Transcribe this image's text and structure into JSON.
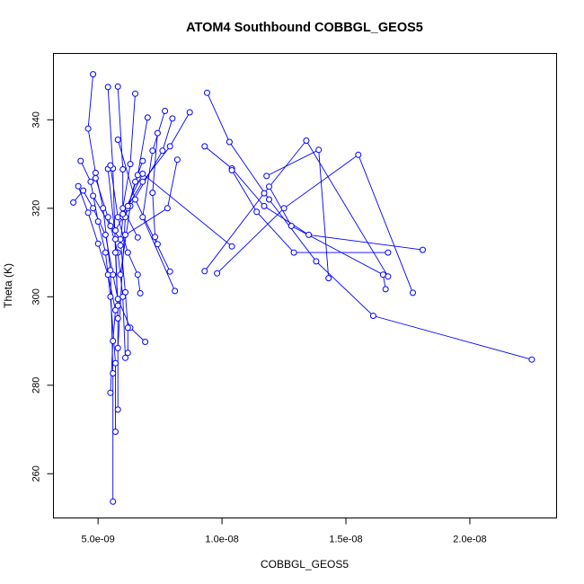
{
  "chart_data": {
    "type": "line",
    "title": "ATOM4 Southbound COBBGL_GEOS5",
    "xlabel": "COBBGL_GEOS5",
    "ylabel": "Theta (K)",
    "xlim": [
      3.2e-09,
      2.35e-08
    ],
    "ylim": [
      250,
      355
    ],
    "xticks": [
      {
        "value": 5e-09,
        "label": "5.0e-09"
      },
      {
        "value": 1e-08,
        "label": "1.0e-08"
      },
      {
        "value": 1.5e-08,
        "label": "1.5e-08"
      },
      {
        "value": 2e-08,
        "label": "2.0e-08"
      }
    ],
    "yticks": [
      {
        "value": 260,
        "label": "260"
      },
      {
        "value": 280,
        "label": "280"
      },
      {
        "value": 300,
        "label": "300"
      },
      {
        "value": 320,
        "label": "320"
      },
      {
        "value": 340,
        "label": "340"
      }
    ],
    "grid": false,
    "line_color": "#0000ff",
    "series": [
      {
        "x": [
          4e-09,
          4.4e-09,
          4.8e-09,
          5.3e-09,
          5.6e-09,
          5.8e-09,
          6.3e-09,
          6.9e-09
        ],
        "y": [
          321.3,
          324.0,
          320.0,
          314.0,
          305.0,
          299.5,
          293.0,
          289.8
        ]
      },
      {
        "x": [
          4.2e-09,
          4.6e-09,
          5e-09,
          5.4e-09,
          5.7e-09,
          5.6e-09,
          5.5e-09
        ],
        "y": [
          325.0,
          319.0,
          312.0,
          305.0,
          297.0,
          290.0,
          278.3
        ]
      },
      {
        "x": [
          4.3e-09,
          4.7e-09,
          5e-09,
          5.3e-09,
          5.5e-09,
          5.7e-09,
          5.7e-09
        ],
        "y": [
          330.7,
          326.0,
          317.0,
          310.0,
          300.0,
          285.0,
          269.5
        ]
      },
      {
        "x": [
          4.8e-09,
          4.6e-09,
          4.9e-09,
          5.2e-09,
          5.5e-09,
          5.6e-09,
          5.6e-09
        ],
        "y": [
          350.3,
          338.0,
          328.0,
          320.0,
          306.0,
          282.7,
          253.7
        ]
      },
      {
        "x": [
          4.8e-09,
          5.5e-09,
          5.9e-09,
          6.1e-09,
          6.2e-09,
          6.2e-09
        ],
        "y": [
          322.8,
          316.0,
          313.0,
          301.0,
          293.0,
          287.3
        ]
      },
      {
        "x": [
          4.9e-09,
          5.4e-09,
          5.8e-09,
          6e-09,
          6.1e-09
        ],
        "y": [
          326.8,
          318.0,
          310.0,
          300.0,
          286.2
        ]
      },
      {
        "x": [
          5.4e-09,
          5.6e-09,
          5.7e-09,
          5.8e-09,
          5.8e-09
        ],
        "y": [
          347.4,
          329.0,
          310.0,
          298.0,
          274.5
        ]
      },
      {
        "x": [
          5.4e-09,
          5.7e-09,
          5.8e-09
        ],
        "y": [
          328.9,
          313.0,
          295.1
        ]
      },
      {
        "x": [
          5.5e-09,
          5.8e-09,
          6.2e-09,
          6.6e-09,
          6.7e-09
        ],
        "y": [
          329.7,
          318.0,
          310.0,
          305.0,
          300.8
        ]
      },
      {
        "x": [
          5.8e-09,
          6e-09,
          6e-09,
          5.9e-09
        ],
        "y": [
          347.5,
          328.8,
          318.0,
          311.6
        ]
      },
      {
        "x": [
          5.8e-09,
          6.5e-09,
          7.9e-09
        ],
        "y": [
          335.5,
          322.0,
          305.7
        ]
      },
      {
        "x": [
          6.5e-09,
          6.3e-09,
          6e-09,
          6.6e-09
        ],
        "y": [
          345.9,
          330.0,
          320.0,
          313.4
        ]
      },
      {
        "x": [
          6.8e-09,
          6.5e-09,
          6.1e-09,
          5.8e-09
        ],
        "y": [
          330.7,
          326.0,
          318.0,
          288.4
        ]
      },
      {
        "x": [
          7e-09,
          6.6e-09,
          6.2e-09,
          5.7e-09
        ],
        "y": [
          340.5,
          327.5,
          320.0,
          315.0
        ]
      },
      {
        "x": [
          7.4e-09,
          7.2e-09,
          7.3e-09,
          7.4e-09
        ],
        "y": [
          337.0,
          323.5,
          313.5,
          311.9
        ]
      },
      {
        "x": [
          7.7e-09,
          7.2e-09,
          6.8e-09,
          8.1e-09
        ],
        "y": [
          342.0,
          333.0,
          318.0,
          301.3
        ]
      },
      {
        "x": [
          8e-09,
          7.6e-09,
          6.3e-09,
          5.9e-09
        ],
        "y": [
          340.3,
          333.0,
          320.5,
          305.0
        ]
      },
      {
        "x": [
          8.2e-09,
          7.8e-09,
          6.1e-09
        ],
        "y": [
          331.0,
          320.0,
          314.0
        ]
      },
      {
        "x": [
          8.7e-09,
          7.9e-09,
          6.8e-09,
          6.2e-09
        ],
        "y": [
          341.7,
          334.0,
          326.0,
          320.5
        ]
      },
      {
        "x": [
          9.4e-09,
          1.03e-08,
          1.19e-08,
          1.38e-08,
          1.61e-08,
          2.25e-08
        ],
        "y": [
          346.1,
          335.0,
          322.0,
          308.0,
          295.7,
          285.8
        ]
      },
      {
        "x": [
          9.3e-09,
          1.04e-08,
          1.17e-08,
          1.35e-08,
          1.81e-08
        ],
        "y": [
          334.0,
          329.0,
          320.5,
          314.0,
          310.6
        ]
      },
      {
        "x": [
          1.04e-08,
          1.14e-08,
          1.29e-08,
          1.67e-08
        ],
        "y": [
          328.6,
          319.2,
          310.0,
          310.0
        ]
      },
      {
        "x": [
          1.18e-08,
          1.39e-08,
          1.43e-08
        ],
        "y": [
          327.3,
          333.2,
          304.2
        ]
      },
      {
        "x": [
          1.19e-08,
          1.28e-08,
          1.65e-08,
          1.66e-08
        ],
        "y": [
          324.9,
          316.0,
          305.0,
          301.7
        ]
      },
      {
        "x": [
          9.3e-09,
          1.17e-08,
          1.34e-08,
          1.67e-08
        ],
        "y": [
          305.8,
          323.4,
          335.3,
          304.6
        ]
      },
      {
        "x": [
          9.8e-09,
          1.25e-08,
          1.55e-08,
          1.77e-08
        ],
        "y": [
          305.3,
          320.0,
          332.1,
          300.9
        ]
      },
      {
        "x": [
          1.04e-08,
          6.8e-09,
          6e-09
        ],
        "y": [
          311.4,
          327.8,
          318.7
        ]
      }
    ]
  }
}
